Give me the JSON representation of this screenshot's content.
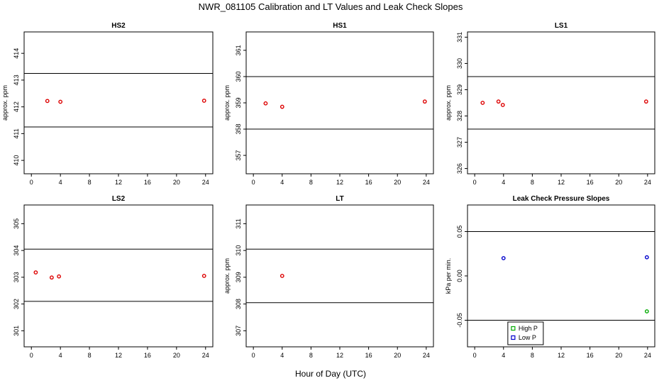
{
  "title": "NWR_081105  Calibration and LT Values and Leak Check Slopes",
  "xlabel": "Hour of Day (UTC)",
  "chart_data": [
    {
      "type": "scatter",
      "title": "HS2",
      "ylabel": "approx. ppm",
      "xlim": [
        -1,
        25
      ],
      "ylim": [
        409.5,
        414.8
      ],
      "xticks": [
        0,
        4,
        8,
        12,
        16,
        20,
        24
      ],
      "yticks": [
        410,
        411,
        412,
        413,
        414
      ],
      "hlines": [
        411.25,
        413.25
      ],
      "series": [
        {
          "color": "#dd0000",
          "x": [
            2.2,
            4.0,
            23.8
          ],
          "y": [
            412.22,
            412.19,
            412.23
          ]
        }
      ]
    },
    {
      "type": "scatter",
      "title": "HS1",
      "ylabel": "approx. ppm",
      "xlim": [
        -1,
        25
      ],
      "ylim": [
        356.3,
        361.7
      ],
      "xticks": [
        0,
        4,
        8,
        12,
        16,
        20,
        24
      ],
      "yticks": [
        357,
        358,
        359,
        360,
        361
      ],
      "hlines": [
        358.0,
        360.0
      ],
      "series": [
        {
          "color": "#dd0000",
          "x": [
            1.7,
            4.0,
            23.8
          ],
          "y": [
            358.98,
            358.85,
            359.05
          ]
        }
      ]
    },
    {
      "type": "scatter",
      "title": "LS1",
      "ylabel": "approx. ppm",
      "xlim": [
        -1,
        25
      ],
      "ylim": [
        325.8,
        331.2
      ],
      "xticks": [
        0,
        4,
        8,
        12,
        16,
        20,
        24
      ],
      "yticks": [
        326,
        327,
        328,
        329,
        330,
        331
      ],
      "hlines": [
        327.5,
        329.5
      ],
      "series": [
        {
          "color": "#dd0000",
          "x": [
            1.1,
            3.3,
            3.9,
            23.8
          ],
          "y": [
            328.5,
            328.55,
            328.42,
            328.55
          ]
        }
      ]
    },
    {
      "type": "scatter",
      "title": "LS2",
      "ylabel": "",
      "xlim": [
        -1,
        25
      ],
      "ylim": [
        300.4,
        305.7
      ],
      "xticks": [
        0,
        4,
        8,
        12,
        16,
        20,
        24
      ],
      "yticks": [
        301,
        302,
        303,
        304,
        305
      ],
      "hlines": [
        302.1,
        304.05
      ],
      "series": [
        {
          "color": "#dd0000",
          "x": [
            0.6,
            2.8,
            3.8,
            23.8
          ],
          "y": [
            303.18,
            302.99,
            303.03,
            303.05
          ]
        }
      ]
    },
    {
      "type": "scatter",
      "title": "LT",
      "ylabel": "approx. ppm",
      "xlim": [
        -1,
        25
      ],
      "ylim": [
        306.4,
        311.7
      ],
      "xticks": [
        0,
        4,
        8,
        12,
        16,
        20,
        24
      ],
      "yticks": [
        307,
        308,
        309,
        310,
        311
      ],
      "hlines": [
        308.05,
        310.05
      ],
      "series": [
        {
          "color": "#dd0000",
          "x": [
            4.0
          ],
          "y": [
            309.05
          ]
        }
      ]
    },
    {
      "type": "scatter",
      "title": "Leak Check Pressure Slopes",
      "ylabel": "kPa per min.",
      "xlim": [
        -1,
        25
      ],
      "ylim": [
        -0.08,
        0.08
      ],
      "xticks": [
        0,
        4,
        8,
        12,
        16,
        20,
        24
      ],
      "yticks": [
        -0.05,
        0.0,
        0.05
      ],
      "yticklabels": [
        "-0.05",
        "0.00",
        "0.05"
      ],
      "hlines": [
        -0.05,
        0.05
      ],
      "legend": {
        "placement": "bottom-center",
        "entries": [
          {
            "label": "High P",
            "color": "#00aa00"
          },
          {
            "label": "Low P",
            "color": "#0000cc"
          }
        ]
      },
      "series": [
        {
          "name": "High P",
          "color": "#00aa00",
          "x": [
            23.9
          ],
          "y": [
            -0.04
          ]
        },
        {
          "name": "Low P",
          "color": "#0000cc",
          "x": [
            4.0,
            23.9
          ],
          "y": [
            0.02,
            0.021
          ]
        }
      ]
    }
  ]
}
